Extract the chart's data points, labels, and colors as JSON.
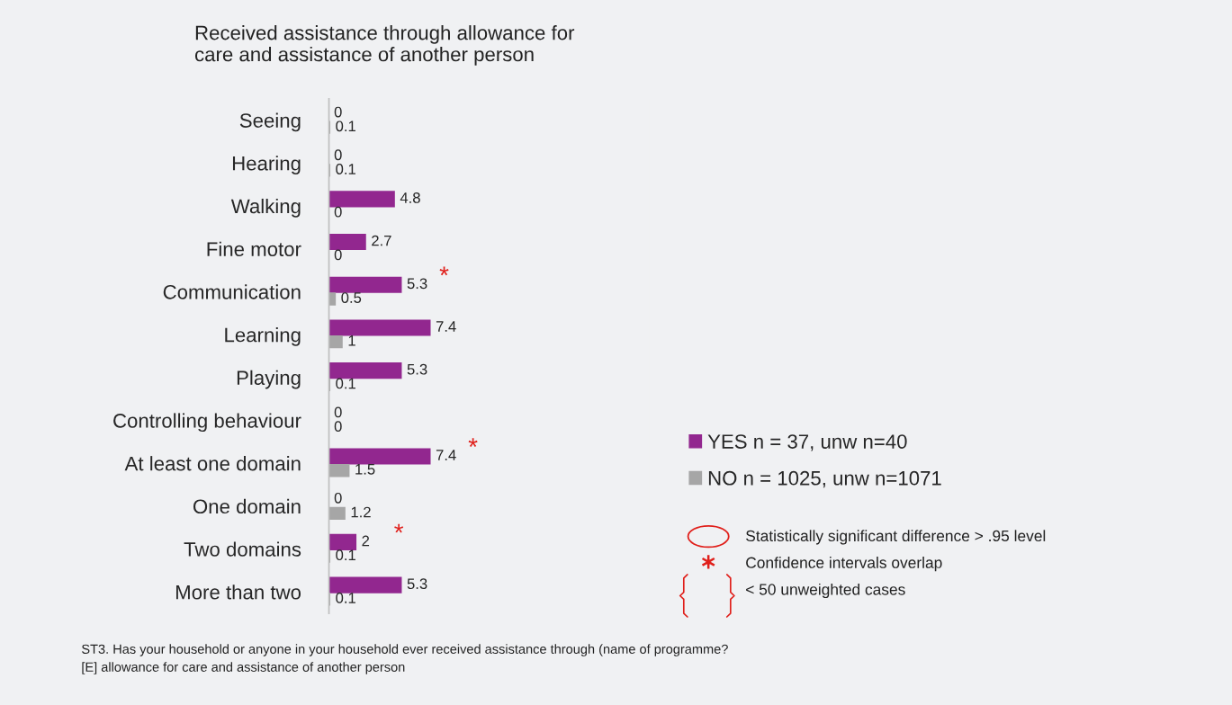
{
  "chart_data": {
    "type": "bar",
    "orientation": "horizontal",
    "title": "Received assistance through allowance for\ncare and assistance of another person",
    "categories": [
      "Seeing",
      "Hearing",
      "Walking",
      "Fine motor",
      "Communication",
      "Learning",
      "Playing",
      "Controlling behaviour",
      "At least one domain",
      "One domain",
      "Two domains",
      "More than two"
    ],
    "series": [
      {
        "name": "YES n = 37, unw n=40",
        "color": "#92278f",
        "values": [
          0,
          0,
          4.8,
          2.7,
          5.3,
          7.4,
          5.3,
          0,
          7.4,
          0,
          2,
          5.3
        ]
      },
      {
        "name": "NO n = 1025, unw n=1071",
        "color": "#a6a6a6",
        "values": [
          0.1,
          0.1,
          0,
          0,
          0.5,
          1,
          0.1,
          0,
          1.5,
          1.2,
          0.1,
          0.1
        ]
      }
    ],
    "data_labels": true,
    "tick_labels": "y",
    "grid": false,
    "legend": "right",
    "annotations": [
      "Statistically significant difference > .95 level",
      "Confidence intervals overlap",
      "< 50 unweighted cases",
      "ST3. Has your household or anyone in your household ever received assistance through (name of programme?\n[E] allowance for care and assistance of another person",
      {
        "text": "*",
        "x": 5.3,
        "y": "Communication"
      },
      {
        "text": "*",
        "x": 7.4,
        "y": "At least one domain"
      },
      {
        "text": "*",
        "x": 2,
        "y": "Two domains"
      }
    ]
  }
}
